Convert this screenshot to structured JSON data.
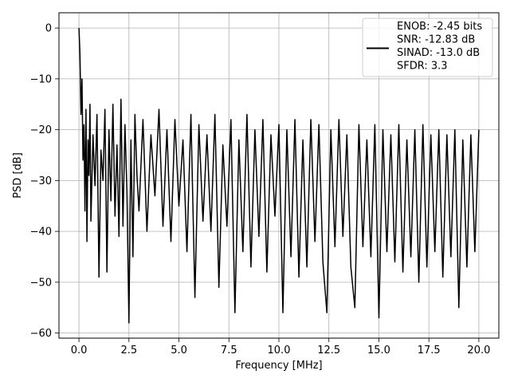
{
  "chart_data": {
    "type": "line",
    "title": "",
    "xlabel": "Frequency [MHz]",
    "ylabel": "PSD [dB]",
    "xlim": [
      -1.0,
      21.0
    ],
    "ylim": [
      -61.0,
      3.0
    ],
    "xticks": [
      0.0,
      2.5,
      5.0,
      7.5,
      10.0,
      12.5,
      15.0,
      17.5,
      20.0
    ],
    "xtick_labels": [
      "0.0",
      "2.5",
      "5.0",
      "7.5",
      "10.0",
      "12.5",
      "15.0",
      "17.5",
      "20.0"
    ],
    "yticks": [
      0,
      -10,
      -20,
      -30,
      -40,
      -50,
      -60
    ],
    "ytick_labels": [
      "0",
      "−10",
      "−20",
      "−30",
      "−40",
      "−50",
      "−60"
    ],
    "grid": true,
    "legend_position": "top-right",
    "legend_entries": [
      "ENOB: -2.45 bits",
      "SNR: -12.83 dB",
      "SINAD: -13.0 dB",
      "SFDR: 3.3"
    ],
    "series": [
      {
        "color": "#000000",
        "x": [
          0.0,
          0.05,
          0.1,
          0.15,
          0.2,
          0.25,
          0.3,
          0.35,
          0.4,
          0.45,
          0.5,
          0.55,
          0.6,
          0.7,
          0.8,
          0.9,
          1.0,
          1.1,
          1.2,
          1.3,
          1.4,
          1.5,
          1.6,
          1.7,
          1.8,
          1.9,
          2.0,
          2.1,
          2.2,
          2.3,
          2.4,
          2.5,
          2.6,
          2.7,
          2.8,
          2.9,
          3.0,
          3.2,
          3.4,
          3.6,
          3.8,
          4.0,
          4.2,
          4.4,
          4.6,
          4.8,
          5.0,
          5.2,
          5.4,
          5.6,
          5.8,
          6.0,
          6.2,
          6.4,
          6.6,
          6.8,
          7.0,
          7.2,
          7.4,
          7.6,
          7.8,
          8.0,
          8.2,
          8.4,
          8.6,
          8.8,
          9.0,
          9.2,
          9.4,
          9.6,
          9.8,
          10.0,
          10.2,
          10.4,
          10.6,
          10.8,
          11.0,
          11.2,
          11.4,
          11.6,
          11.8,
          12.0,
          12.2,
          12.4,
          12.6,
          12.8,
          13.0,
          13.2,
          13.4,
          13.6,
          13.8,
          14.0,
          14.2,
          14.4,
          14.6,
          14.8,
          15.0,
          15.2,
          15.4,
          15.6,
          15.8,
          16.0,
          16.2,
          16.4,
          16.6,
          16.8,
          17.0,
          17.2,
          17.4,
          17.6,
          17.8,
          18.0,
          18.2,
          18.4,
          18.6,
          18.8,
          19.0,
          19.2,
          19.4,
          19.6,
          19.8,
          20.0
        ],
        "y": [
          0.0,
          -5.0,
          -17.0,
          -10.0,
          -26.0,
          -19.0,
          -36.0,
          -16.0,
          -42.0,
          -22.0,
          -29.0,
          -15.0,
          -38.0,
          -21.0,
          -31.0,
          -17.0,
          -49.0,
          -24.0,
          -30.0,
          -16.0,
          -48.0,
          -20.0,
          -34.0,
          -15.0,
          -37.0,
          -23.0,
          -41.0,
          -14.0,
          -39.0,
          -19.0,
          -32.0,
          -58.0,
          -22.0,
          -45.0,
          -17.0,
          -29.0,
          -36.0,
          -18.0,
          -40.0,
          -21.0,
          -33.0,
          -16.0,
          -39.0,
          -20.0,
          -42.0,
          -18.0,
          -35.0,
          -22.0,
          -44.0,
          -17.0,
          -53.0,
          -19.0,
          -38.0,
          -21.0,
          -40.0,
          -17.0,
          -51.0,
          -23.0,
          -39.0,
          -18.0,
          -56.0,
          -22.0,
          -44.0,
          -17.0,
          -47.0,
          -20.0,
          -41.0,
          -18.0,
          -48.0,
          -21.0,
          -37.0,
          -19.0,
          -56.0,
          -20.0,
          -45.0,
          -18.0,
          -49.0,
          -22.0,
          -47.0,
          -18.0,
          -42.0,
          -19.0,
          -46.0,
          -56.0,
          -20.0,
          -43.0,
          -18.0,
          -41.0,
          -21.0,
          -47.0,
          -55.0,
          -19.0,
          -43.0,
          -22.0,
          -45.0,
          -19.0,
          -57.0,
          -20.0,
          -44.0,
          -21.0,
          -46.0,
          -19.0,
          -48.0,
          -22.0,
          -45.0,
          -20.0,
          -50.0,
          -19.0,
          -47.0,
          -21.0,
          -44.0,
          -20.0,
          -49.0,
          -21.0,
          -45.0,
          -20.0,
          -55.0,
          -22.0,
          -47.0,
          -21.0,
          -44.0,
          -20.0
        ]
      }
    ]
  }
}
